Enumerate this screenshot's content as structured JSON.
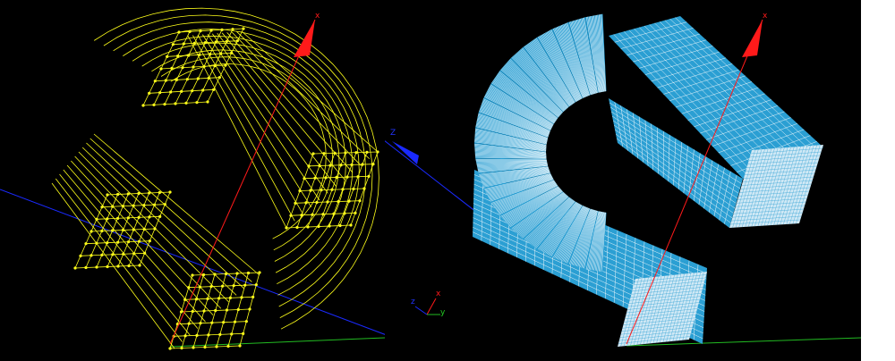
{
  "viewports": {
    "left": {
      "mode": "wireframe"
    },
    "right": {
      "mode": "shaded-mesh"
    }
  },
  "axes": {
    "x_label": "x",
    "z_label": "Z",
    "triad": {
      "x_label": "x",
      "y_label": "y",
      "z_label": "z"
    }
  },
  "colors": {
    "background": "#000000",
    "wireframe": "#ffff1a",
    "mesh_fill": "#2b9fd3",
    "mesh_lines": "#ffffff",
    "x_axis": "#ff1a1a",
    "y_axis": "#22bb22",
    "z_axis": "#1a2aff"
  },
  "icons": [
    "axis-arrow-icon",
    "triad-icon"
  ]
}
